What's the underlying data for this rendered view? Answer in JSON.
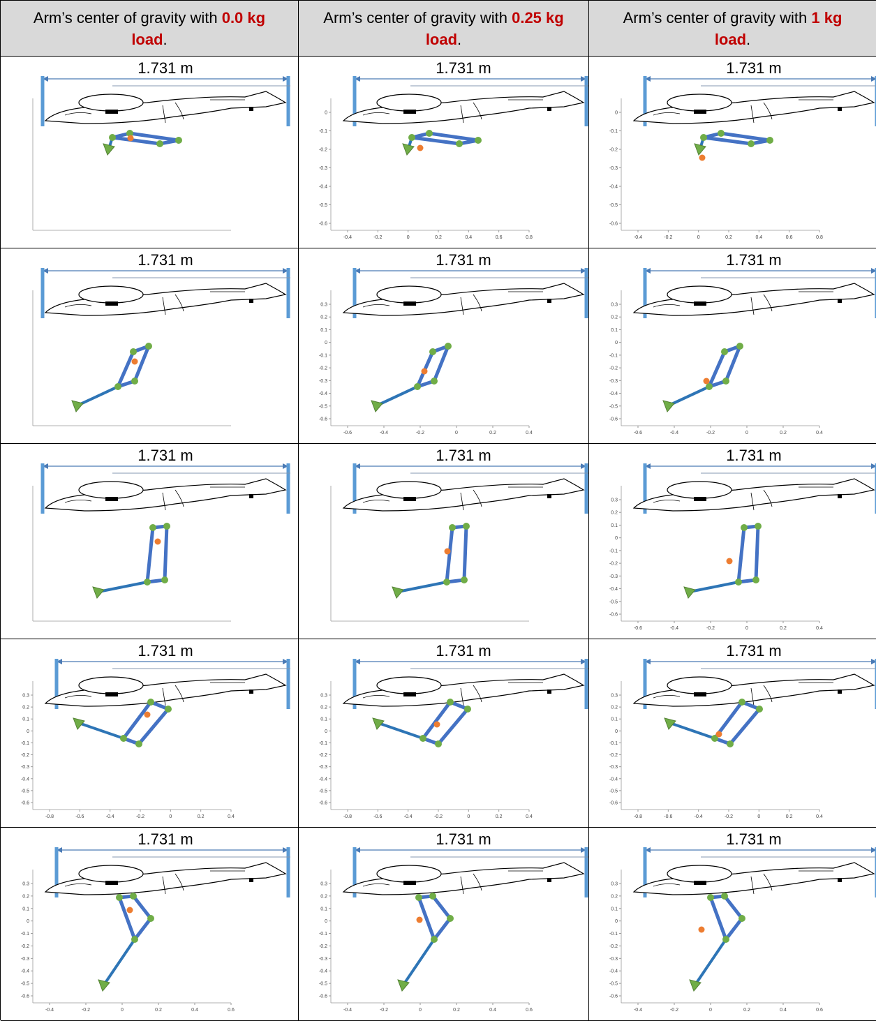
{
  "header": [
    {
      "text": "Arm’s center of gravity with ",
      "load": "0.0 kg load",
      "suffix": "."
    },
    {
      "text": "Arm’s center of gravity with ",
      "load": "0.25 kg load",
      "suffix": "."
    },
    {
      "text": "Arm’s center of gravity with ",
      "load": "1 kg load",
      "suffix": "."
    }
  ],
  "rows": [
    [
      {
        "dimension": "1.731 m"
      },
      {
        "dimension": "1.731 m",
        "yticks": [
          "0",
          "-0.1",
          "-0.2",
          "-0.3",
          "-0.4",
          "-0.5",
          "-0.6"
        ],
        "xticks": [
          "-0.4",
          "-0.2",
          "0",
          "0.2",
          "0.4",
          "0.6",
          "0.8"
        ]
      },
      {
        "dimension": "1.731 m",
        "yticks": [
          "0",
          "-0.1",
          "-0.2",
          "-0.3",
          "-0.4",
          "-0.5",
          "-0.6"
        ],
        "xticks": [
          "-0.4",
          "-0.2",
          "0",
          "0.2",
          "0.4",
          "0.6",
          "0.8"
        ]
      }
    ],
    [
      {
        "dimension": "1.731 m"
      },
      {
        "dimension": "1.731 m",
        "yticks": [
          "0.3",
          "0.2",
          "0.1",
          "0",
          "-0.1",
          "-0.2",
          "-0.3",
          "-0.4",
          "-0.5",
          "-0.6"
        ],
        "xticks": [
          "-0.6",
          "-0.4",
          "-0.2",
          "0",
          "0.2",
          "0.4"
        ]
      },
      {
        "dimension": "1.731 m",
        "yticks": [
          "0.3",
          "0.2",
          "0.1",
          "0",
          "-0.1",
          "-0.2",
          "-0.3",
          "-0.4",
          "-0.5",
          "-0.6"
        ],
        "xticks": [
          "-0.6",
          "-0.4",
          "-0.2",
          "0",
          "0.2",
          "0.4"
        ]
      }
    ],
    [
      {
        "dimension": "1.731 m"
      },
      {
        "dimension": "1.731 m"
      },
      {
        "dimension": "1.731 m",
        "yticks": [
          "0.3",
          "0.2",
          "0.1",
          "0",
          "-0.1",
          "-0.2",
          "-0.3",
          "-0.4",
          "-0.5",
          "-0.6"
        ],
        "xticks": [
          "-0.6",
          "-0.4",
          "-0.2",
          "0",
          "0.2",
          "0.4"
        ]
      }
    ],
    [
      {
        "dimension": "1.731 m",
        "yticks": [
          "0.3",
          "0.2",
          "0.1",
          "0",
          "-0.1",
          "-0.2",
          "-0.3",
          "-0.4",
          "-0.5",
          "-0.6"
        ],
        "xticks": [
          "-0.8",
          "-0.6",
          "-0.4",
          "-0.2",
          "0",
          "0.2",
          "0.4"
        ]
      },
      {
        "dimension": "1.731 m",
        "yticks": [
          "0.3",
          "0.2",
          "0.1",
          "0",
          "-0.1",
          "-0.2",
          "-0.3",
          "-0.4",
          "-0.5",
          "-0.6"
        ],
        "xticks": [
          "-0.8",
          "-0.6",
          "-0.4",
          "-0.2",
          "0",
          "0.2",
          "0.4"
        ]
      },
      {
        "dimension": "1.731 m",
        "yticks": [
          "0.3",
          "0.2",
          "0.1",
          "0",
          "-0.1",
          "-0.2",
          "-0.3",
          "-0.4",
          "-0.5",
          "-0.6"
        ],
        "xticks": [
          "-0.8",
          "-0.6",
          "-0.4",
          "-0.2",
          "0",
          "0.2",
          "0.4"
        ]
      }
    ],
    [
      {
        "dimension": "1.731 m",
        "yticks": [
          "0.3",
          "0.2",
          "0.1",
          "0",
          "-0.1",
          "-0.2",
          "-0.3",
          "-0.4",
          "-0.5",
          "-0.6"
        ],
        "xticks": [
          "-0.4",
          "-0.2",
          "0",
          "0.2",
          "0.4",
          "0.6"
        ]
      },
      {
        "dimension": "1.731 m",
        "yticks": [
          "0.3",
          "0.2",
          "0.1",
          "0",
          "-0.1",
          "-0.2",
          "-0.3",
          "-0.4",
          "-0.5",
          "-0.6"
        ],
        "xticks": [
          "-0.4",
          "-0.2",
          "0",
          "0.2",
          "0.4",
          "0.6"
        ]
      },
      {
        "dimension": "1.731 m",
        "yticks": [
          "0.3",
          "0.2",
          "0.1",
          "0",
          "-0.1",
          "-0.2",
          "-0.3",
          "-0.4",
          "-0.5",
          "-0.6"
        ],
        "xticks": [
          "-0.4",
          "-0.2",
          "0",
          "0.2",
          "0.4",
          "0.6"
        ]
      }
    ]
  ]
}
